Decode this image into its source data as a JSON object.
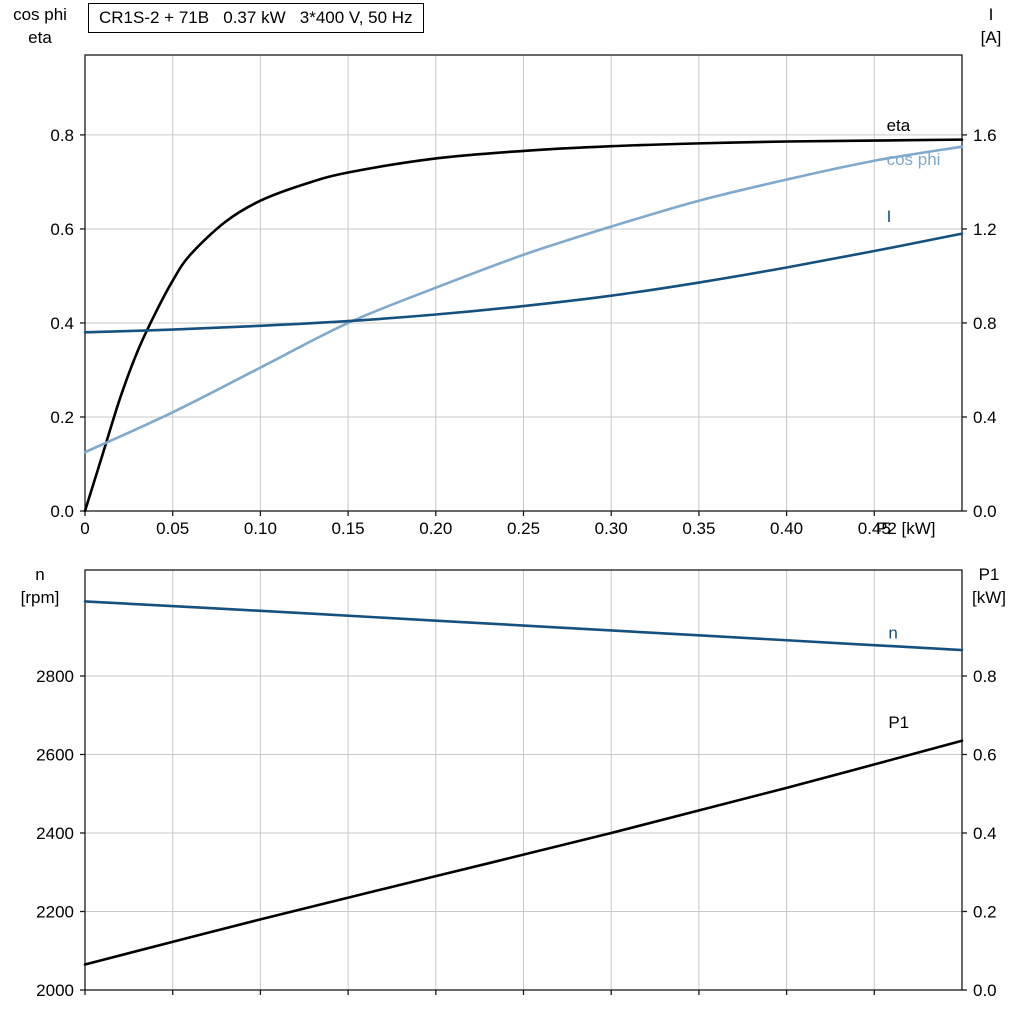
{
  "title_box": {
    "text": "CR1S-2 + 71B   0.37 kW   3*400 V, 50 Hz"
  },
  "axis_corner_labels": {
    "top_left_line1": "cos phi",
    "top_left_line2": "eta",
    "top_right_line1": "I",
    "top_right_line2": "[A]",
    "mid_left_line1": "n",
    "mid_left_line2": "[rpm]",
    "mid_right_line1": "P1",
    "mid_right_line2": "[kW]"
  },
  "x_axis_label": "P2 [kW]",
  "colors": {
    "black": "#000000",
    "light_blue": "#7FA9CD",
    "dark_blue": "#15517E",
    "grid": "#C9C9C9",
    "frame": "#1A1A1A",
    "text": "#000000"
  },
  "chart_data": [
    {
      "type": "line",
      "title": "CR1S-2 + 71B   0.37 kW   3*400 V, 50 Hz",
      "xlabel": "P2 [kW]",
      "xlim": [
        0,
        0.5
      ],
      "x_ticks": [
        0,
        0.05,
        0.1,
        0.15,
        0.2,
        0.25,
        0.3,
        0.35,
        0.4,
        0.45
      ],
      "x_tick_labels": [
        "0",
        "0.05",
        "0.10",
        "0.15",
        "0.20",
        "0.25",
        "0.30",
        "0.35",
        "0.40",
        "0.45"
      ],
      "left_axis": {
        "label": "cos phi / eta",
        "lim": [
          0,
          0.97
        ],
        "ticks": [
          0,
          0.2,
          0.4,
          0.6,
          0.8
        ],
        "tick_labels": [
          "0.0",
          "0.2",
          "0.4",
          "0.6",
          "0.8"
        ]
      },
      "right_axis": {
        "label": "I [A]",
        "lim": [
          0,
          1.94
        ],
        "ticks": [
          0,
          0.4,
          0.8,
          1.2,
          1.6
        ],
        "tick_labels": [
          "0.0",
          "0.4",
          "0.8",
          "1.2",
          "1.6"
        ]
      },
      "grid": true,
      "legend_position": "curve-end-labels",
      "series": [
        {
          "name": "eta",
          "label": "eta",
          "axis": "left",
          "color_key": "black",
          "x": [
            0,
            0.01,
            0.02,
            0.03,
            0.04,
            0.05,
            0.06,
            0.08,
            0.1,
            0.125,
            0.15,
            0.2,
            0.25,
            0.3,
            0.35,
            0.4,
            0.45,
            0.5
          ],
          "y": [
            0,
            0.12,
            0.24,
            0.34,
            0.42,
            0.49,
            0.545,
            0.615,
            0.66,
            0.695,
            0.72,
            0.75,
            0.766,
            0.776,
            0.782,
            0.786,
            0.788,
            0.79
          ],
          "label_x": 0.457,
          "label_y": 0.808
        },
        {
          "name": "cos phi",
          "label": "cos phi",
          "axis": "left",
          "color_key": "light_blue",
          "x": [
            0,
            0.05,
            0.1,
            0.15,
            0.2,
            0.25,
            0.3,
            0.35,
            0.4,
            0.45,
            0.5
          ],
          "y": [
            0.125,
            0.21,
            0.305,
            0.4,
            0.475,
            0.545,
            0.605,
            0.66,
            0.705,
            0.745,
            0.775
          ],
          "label_x": 0.457,
          "label_y": 0.736
        },
        {
          "name": "I",
          "label": "I",
          "axis": "right",
          "color_key": "dark_blue",
          "x": [
            0,
            0.05,
            0.1,
            0.15,
            0.2,
            0.25,
            0.3,
            0.35,
            0.4,
            0.45,
            0.5
          ],
          "y": [
            0.76,
            0.772,
            0.788,
            0.808,
            0.836,
            0.872,
            0.916,
            0.972,
            1.036,
            1.106,
            1.18
          ],
          "label_x": 0.457,
          "label_y": 1.23
        }
      ]
    },
    {
      "type": "line",
      "title": "",
      "xlabel": "",
      "xlim": [
        0,
        0.5
      ],
      "x_ticks": [
        0,
        0.05,
        0.1,
        0.15,
        0.2,
        0.25,
        0.3,
        0.35,
        0.4,
        0.45
      ],
      "x_tick_labels": [],
      "left_axis": {
        "label": "n [rpm]",
        "lim": [
          2000,
          3070
        ],
        "ticks": [
          2000,
          2200,
          2400,
          2600,
          2800
        ],
        "tick_labels": [
          "2000",
          "2200",
          "2400",
          "2600",
          "2800"
        ]
      },
      "right_axis": {
        "label": "P1 [kW]",
        "lim": [
          0,
          1.07
        ],
        "ticks": [
          0,
          0.2,
          0.4,
          0.6,
          0.8
        ],
        "tick_labels": [
          "0.0",
          "0.2",
          "0.4",
          "0.6",
          "0.8"
        ]
      },
      "grid": true,
      "legend_position": "curve-end-labels",
      "series": [
        {
          "name": "n",
          "label": "n",
          "axis": "left",
          "color_key": "dark_blue",
          "x": [
            0,
            0.1,
            0.2,
            0.3,
            0.4,
            0.5
          ],
          "y": [
            2990,
            2966,
            2941,
            2916,
            2891,
            2866
          ],
          "label_x": 0.458,
          "label_y": 2895
        },
        {
          "name": "P1",
          "label": "P1",
          "axis": "right",
          "color_key": "black",
          "x": [
            0,
            0.1,
            0.2,
            0.3,
            0.4,
            0.5
          ],
          "y": [
            0.065,
            0.18,
            0.29,
            0.4,
            0.515,
            0.635
          ],
          "label_x": 0.458,
          "label_y": 0.667
        }
      ]
    }
  ]
}
